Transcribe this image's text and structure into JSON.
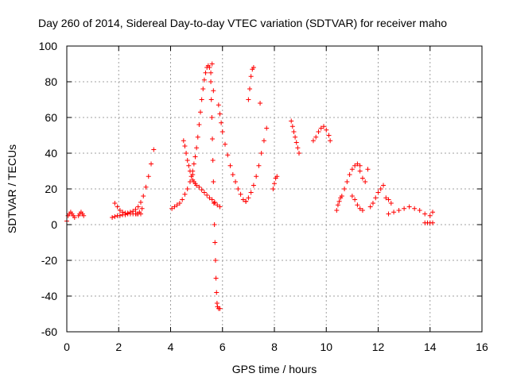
{
  "chart_data": {
    "type": "scatter",
    "title": "Day 260 of 2014, Sidereal Day-to-day VTEC variation (SDTVAR) for receiver maho",
    "xlabel": "GPS time / hours",
    "ylabel": "SDTVAR / TECUs",
    "xlim": [
      0,
      16
    ],
    "ylim": [
      -60,
      100
    ],
    "xticks": [
      "0",
      "2",
      "4",
      "6",
      "8",
      "10",
      "12",
      "14",
      "16"
    ],
    "yticks": [
      "100",
      "80",
      "60",
      "40",
      "20",
      "0",
      "-20",
      "-40",
      "-60"
    ],
    "grid": true,
    "marker": "+",
    "color": "#ff0000",
    "series": [
      {
        "name": "seg01",
        "x": [
          0.0,
          0.05,
          0.1,
          0.15,
          0.2,
          0.25,
          0.3
        ],
        "y": [
          2,
          5,
          6,
          7,
          6,
          5,
          4
        ]
      },
      {
        "name": "seg02",
        "x": [
          0.45,
          0.5,
          0.55,
          0.6,
          0.65
        ],
        "y": [
          5,
          6,
          7,
          6,
          5
        ]
      },
      {
        "name": "seg03",
        "x": [
          1.75,
          1.85,
          1.95,
          2.05,
          2.15,
          2.25,
          2.35,
          2.45,
          2.55,
          2.65,
          2.75,
          2.85
        ],
        "y": [
          4,
          4.5,
          5,
          5,
          5.5,
          5.5,
          6,
          6,
          6,
          6,
          6,
          6
        ]
      },
      {
        "name": "seg04",
        "x": [
          1.85,
          1.95,
          2.05,
          2.15,
          2.25,
          2.35,
          2.45,
          2.55,
          2.65,
          2.75,
          2.85,
          2.95,
          3.05,
          3.15,
          3.25,
          3.35
        ],
        "y": [
          12,
          10,
          8,
          7,
          6.5,
          6.5,
          7,
          7.5,
          8.5,
          10,
          12.5,
          16,
          21,
          27,
          34,
          42
        ]
      },
      {
        "name": "seg05",
        "x": [
          2.7,
          2.8,
          2.9
        ],
        "y": [
          6,
          7,
          9
        ]
      },
      {
        "name": "seg06",
        "x": [
          4.05,
          4.15,
          4.25,
          4.35,
          4.45,
          4.55,
          4.65,
          4.75,
          4.85
        ],
        "y": [
          9,
          10,
          11,
          12,
          14,
          17,
          20,
          24,
          28
        ]
      },
      {
        "name": "seg07",
        "x": [
          4.5,
          4.55,
          4.6,
          4.65,
          4.7,
          4.75,
          4.8,
          4.85,
          4.9,
          4.95,
          5.0,
          5.1,
          5.2,
          5.3,
          5.4,
          5.5,
          5.6,
          5.7,
          5.8,
          5.9
        ],
        "y": [
          47,
          44,
          40,
          36,
          33,
          30,
          27,
          25,
          24,
          23,
          22,
          21,
          19.5,
          18,
          16.5,
          15,
          14,
          12.5,
          11,
          10
        ]
      },
      {
        "name": "seg08",
        "x": [
          4.85,
          4.9,
          4.95,
          5.0,
          5.05,
          5.1,
          5.15,
          5.2,
          5.25,
          5.3,
          5.35,
          5.4,
          5.45,
          5.5,
          5.55
        ],
        "y": [
          30,
          34,
          38,
          43,
          49,
          56,
          63,
          70,
          76,
          81,
          85,
          88,
          89,
          88,
          85
        ]
      },
      {
        "name": "seg09",
        "x": [
          5.55,
          5.57,
          5.59,
          5.61,
          5.63,
          5.65,
          5.67,
          5.69,
          5.71,
          5.73,
          5.75,
          5.77,
          5.79,
          5.81,
          5.85,
          5.9
        ],
        "y": [
          80,
          70,
          60,
          48,
          36,
          24,
          12,
          0,
          -10,
          -20,
          -30,
          -38,
          -44,
          -46,
          -47,
          -47
        ]
      },
      {
        "name": "seg10",
        "x": [
          5.6,
          5.65
        ],
        "y": [
          90,
          75
        ]
      },
      {
        "name": "seg11",
        "x": [
          5.85,
          5.9,
          5.95,
          6.0,
          6.1,
          6.2,
          6.3,
          6.4,
          6.5,
          6.6,
          6.7,
          6.8,
          6.9
        ],
        "y": [
          67,
          62,
          57,
          52,
          45,
          39,
          33,
          28,
          24,
          20,
          17,
          14,
          13
        ]
      },
      {
        "name": "seg12",
        "x": [
          6.9,
          7.0,
          7.1,
          7.2,
          7.3,
          7.4,
          7.5,
          7.6,
          7.7
        ],
        "y": [
          13,
          15,
          18,
          22,
          27,
          33,
          40,
          47,
          54
        ]
      },
      {
        "name": "seg13",
        "x": [
          7.0,
          7.05,
          7.1,
          7.15,
          7.2
        ],
        "y": [
          70,
          76,
          83,
          87,
          88
        ]
      },
      {
        "name": "seg14",
        "x": [
          7.45
        ],
        "y": [
          68
        ]
      },
      {
        "name": "seg15",
        "x": [
          7.95,
          8.0,
          8.05,
          8.1
        ],
        "y": [
          20,
          23,
          26,
          27
        ]
      },
      {
        "name": "seg16",
        "x": [
          8.65,
          8.7,
          8.75,
          8.8,
          8.85,
          8.9,
          8.95
        ],
        "y": [
          58,
          55,
          52,
          49,
          46,
          43,
          40
        ]
      },
      {
        "name": "seg17",
        "x": [
          9.5,
          9.6,
          9.7,
          9.8,
          9.9,
          10.0,
          10.1,
          10.15
        ],
        "y": [
          47,
          49,
          52,
          54,
          55,
          53,
          50,
          47
        ]
      },
      {
        "name": "seg18",
        "x": [
          10.4,
          10.45,
          10.5,
          10.55,
          10.6
        ],
        "y": [
          8,
          11,
          13,
          15,
          16
        ]
      },
      {
        "name": "seg19",
        "x": [
          10.7,
          10.8,
          10.9,
          11.0,
          11.1,
          11.2,
          11.3
        ],
        "y": [
          20,
          24,
          28,
          31,
          33,
          34,
          33
        ]
      },
      {
        "name": "seg20",
        "x": [
          11.0,
          11.1,
          11.2,
          11.3,
          11.4
        ],
        "y": [
          16,
          14,
          11,
          9,
          8
        ]
      },
      {
        "name": "seg21",
        "x": [
          11.3,
          11.4,
          11.5,
          11.6
        ],
        "y": [
          30,
          26,
          24,
          31
        ]
      },
      {
        "name": "seg22",
        "x": [
          11.7,
          11.8,
          11.9,
          12.0,
          12.1,
          12.2
        ],
        "y": [
          10,
          12,
          15,
          18,
          20,
          22
        ]
      },
      {
        "name": "seg23",
        "x": [
          12.3,
          12.4,
          12.5
        ],
        "y": [
          15,
          14,
          12
        ]
      },
      {
        "name": "seg24",
        "x": [
          12.4,
          12.6,
          12.8,
          13.0,
          13.2,
          13.4,
          13.6,
          13.8,
          14.0,
          14.1
        ],
        "y": [
          6,
          7,
          8,
          9,
          10,
          9,
          8,
          6,
          5,
          7
        ]
      },
      {
        "name": "seg25",
        "x": [
          13.8,
          13.9,
          14.0,
          14.1
        ],
        "y": [
          1,
          1,
          1,
          1
        ]
      }
    ]
  }
}
